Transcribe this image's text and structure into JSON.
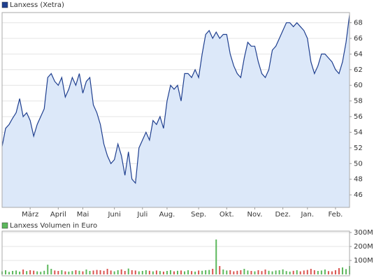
{
  "chart_data": [
    {
      "type": "area",
      "legend": "Lanxess (Xetra)",
      "color": "#1f3f8f",
      "fill": "#dce8f9",
      "categories": [
        null,
        null,
        null,
        null,
        null,
        null,
        null,
        null,
        "März",
        null,
        null,
        null,
        null,
        null,
        null,
        null,
        "April",
        null,
        null,
        null,
        null,
        null,
        null,
        "Mai",
        null,
        null,
        null,
        null,
        null,
        null,
        null,
        null,
        "Juni",
        null,
        null,
        null,
        null,
        null,
        null,
        null,
        "Juli",
        null,
        null,
        null,
        null,
        null,
        null,
        "Aug.",
        null,
        null,
        null,
        null,
        null,
        null,
        null,
        null,
        "Sep.",
        null,
        null,
        null,
        null,
        null,
        null,
        null,
        "Okt.",
        null,
        null,
        null,
        null,
        null,
        null,
        null,
        "Nov.",
        null,
        null,
        null,
        null,
        null,
        null,
        null,
        "Dez.",
        null,
        null,
        null,
        null,
        null,
        null,
        "Jan.",
        null,
        null,
        null,
        null,
        null,
        null,
        null,
        "Feb.",
        null,
        null,
        null,
        null
      ],
      "values": [
        52.2,
        54.5,
        55,
        55.8,
        56.5,
        58.3,
        56,
        56.5,
        55.5,
        53.5,
        55,
        56,
        57,
        61,
        61.5,
        60.5,
        60,
        61,
        58.5,
        59.5,
        61,
        60,
        61.5,
        59,
        60.5,
        61,
        57.5,
        56.5,
        55,
        52.5,
        51,
        50,
        50.5,
        52.5,
        51,
        48.5,
        51.5,
        48,
        47.5,
        52,
        53,
        54,
        53,
        55.5,
        55,
        56,
        54.5,
        58,
        60,
        59.5,
        60,
        58,
        61.5,
        61.5,
        61,
        62,
        61,
        64,
        66.5,
        67,
        66,
        66.8,
        66,
        66.5,
        66.5,
        64,
        62.5,
        61.5,
        61,
        63.5,
        65.5,
        65,
        65,
        63,
        61.5,
        61,
        62,
        64.5,
        65,
        66,
        67,
        68,
        68,
        67.5,
        68,
        67.5,
        67,
        66,
        63,
        61.5,
        62.5,
        64,
        64,
        63.5,
        63,
        62,
        61.5,
        63,
        65.5,
        69
      ],
      "ylim": [
        44.4,
        69.3
      ],
      "yticks": [
        46,
        48,
        50,
        52,
        54,
        56,
        58,
        60,
        62,
        64,
        66,
        68
      ],
      "grid": true
    },
    {
      "type": "bar",
      "legend": "Lanxess Volumen in Euro",
      "color": "#5cb85c",
      "up_color": "#5cb85c",
      "down_color": "#d9534f",
      "values": [
        22000000,
        30000000,
        18000000,
        25000000,
        28000000,
        20000000,
        35000000,
        24000000,
        30000000,
        27000000,
        22000000,
        19000000,
        26000000,
        70000000,
        40000000,
        28000000,
        25000000,
        30000000,
        22000000,
        20000000,
        24000000,
        30000000,
        26000000,
        22000000,
        35000000,
        25000000,
        28000000,
        32000000,
        30000000,
        26000000,
        40000000,
        28000000,
        22000000,
        30000000,
        36000000,
        25000000,
        42000000,
        30000000,
        28000000,
        22000000,
        25000000,
        30000000,
        26000000,
        22000000,
        28000000,
        24000000,
        20000000,
        25000000,
        30000000,
        22000000,
        26000000,
        28000000,
        22000000,
        30000000,
        24000000,
        20000000,
        28000000,
        26000000,
        30000000,
        32000000,
        40000000,
        250000000,
        60000000,
        35000000,
        28000000,
        30000000,
        22000000,
        26000000,
        30000000,
        40000000,
        28000000,
        25000000,
        22000000,
        30000000,
        24000000,
        35000000,
        26000000,
        22000000,
        28000000,
        30000000,
        36000000,
        24000000,
        20000000,
        26000000,
        30000000,
        22000000,
        28000000,
        32000000,
        40000000,
        30000000,
        25000000,
        28000000,
        35000000,
        24000000,
        22000000,
        30000000,
        45000000,
        50000000,
        38000000,
        60000000
      ],
      "ylim": [
        0,
        310000000
      ],
      "yticks": [
        {
          "value": 100000000,
          "label": "100M"
        },
        {
          "value": 200000000,
          "label": "200M"
        },
        {
          "value": 300000000,
          "label": "300M"
        }
      ],
      "grid": true
    }
  ]
}
